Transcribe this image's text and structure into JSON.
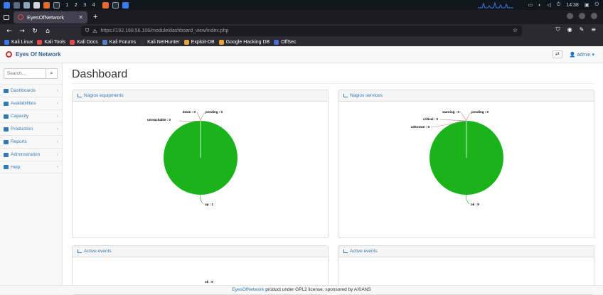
{
  "taskbar": {
    "workspaces": [
      "1",
      "2",
      "3",
      "4"
    ],
    "clock": "14:38"
  },
  "browser": {
    "tab_title": "EyesOfNetwork",
    "url_host": "https://192.168.56.106",
    "url_path": "/module/dashboard_view/index.php",
    "bookmarks": [
      {
        "label": "Kali Linux",
        "color": "#367bf0"
      },
      {
        "label": "Kali Tools",
        "color": "#e04a4a"
      },
      {
        "label": "Kali Docs",
        "color": "#e04a4a"
      },
      {
        "label": "Kali Forums",
        "color": "#5a7fbf"
      },
      {
        "label": "Kali NetHunter",
        "color": "#333333"
      },
      {
        "label": "Exploit-DB",
        "color": "#e8a33a"
      },
      {
        "label": "Google Hacking DB",
        "color": "#e8a33a"
      },
      {
        "label": "OffSec",
        "color": "#4a6cd4"
      }
    ]
  },
  "app": {
    "brand": "Eyes Of Network",
    "user": "admin",
    "search_placeholder": "Search...",
    "menu": [
      {
        "label": "Dashboards",
        "name": "dashboards"
      },
      {
        "label": "Availabilities",
        "name": "availabilities"
      },
      {
        "label": "Capacity",
        "name": "capacity"
      },
      {
        "label": "Production",
        "name": "production"
      },
      {
        "label": "Reports",
        "name": "reports"
      },
      {
        "label": "Administration",
        "name": "administration"
      },
      {
        "label": "Help",
        "name": "help"
      }
    ],
    "page_title": "Dashboard",
    "footer": {
      "link": "EyesOfNetwork",
      "text": "product under GPL2 license, sponsored by AXIANS"
    }
  },
  "panels": {
    "equipments": {
      "title": "Nagios equipments"
    },
    "services": {
      "title": "Nagios services"
    },
    "events_left": {
      "title": "Active events"
    },
    "events_right": {
      "title": "Active events"
    }
  },
  "chart_data": [
    {
      "type": "pie",
      "categories": [
        "up",
        "down",
        "pending",
        "unreachable"
      ],
      "values": [
        1,
        0,
        0,
        0
      ],
      "labels": [
        "up : 1",
        "down : 0",
        "pending : 0",
        "unreachable : 0"
      ],
      "colors": [
        "#1ab31a",
        "#d9534f",
        "#f0ad4e",
        "#777777"
      ]
    },
    {
      "type": "pie",
      "categories": [
        "ok",
        "warning",
        "pending",
        "critical",
        "unknown"
      ],
      "values": [
        9,
        0,
        0,
        0,
        0
      ],
      "labels": [
        "ok : 9",
        "warning : 0",
        "pending : 0",
        "critical : 0",
        "unknown : 0"
      ],
      "colors": [
        "#1ab31a",
        "#f0ad4e",
        "#5bc0de",
        "#d9534f",
        "#777777"
      ]
    },
    {
      "type": "pie",
      "categories": [
        "ok"
      ],
      "values": [
        0
      ],
      "labels": [
        "ok : 0"
      ]
    }
  ]
}
